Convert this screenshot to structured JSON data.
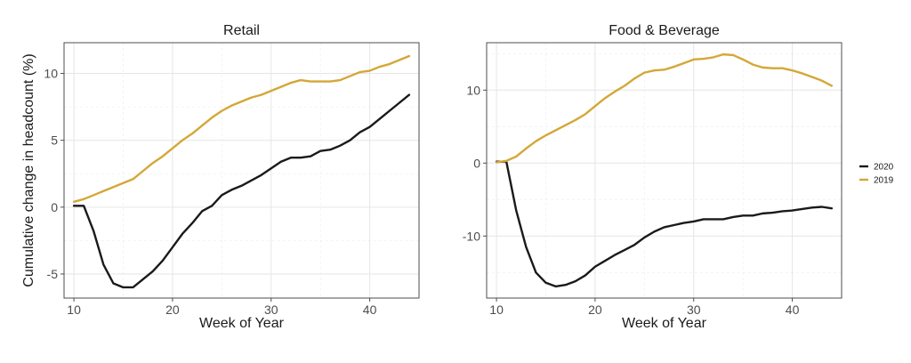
{
  "chart_data": [
    {
      "type": "line",
      "title": "Retail",
      "xlabel": "Week of Year",
      "ylabel": "Cumulative change in headcount (%)",
      "xlim": [
        9,
        45
      ],
      "ylim": [
        -6.8,
        12.3
      ],
      "xticks": [
        10,
        20,
        30,
        40
      ],
      "yticks": [
        -5,
        0,
        5,
        10
      ],
      "ytick_labels": [
        "-5",
        "0",
        "5",
        "10"
      ],
      "grid": true,
      "series": [
        {
          "name": "2020",
          "color": "#1a1a1a",
          "x": [
            10,
            11,
            12,
            13,
            14,
            15,
            16,
            17,
            18,
            19,
            20,
            21,
            22,
            23,
            24,
            25,
            26,
            27,
            28,
            29,
            30,
            31,
            32,
            33,
            34,
            35,
            36,
            37,
            38,
            39,
            40,
            41,
            42,
            43,
            44
          ],
          "y": [
            0.1,
            0.1,
            -1.8,
            -4.3,
            -5.7,
            -6.0,
            -6.0,
            -5.4,
            -4.8,
            -4.0,
            -3.0,
            -2.0,
            -1.2,
            -0.3,
            0.1,
            0.9,
            1.3,
            1.6,
            2.0,
            2.4,
            2.9,
            3.4,
            3.7,
            3.7,
            3.8,
            4.2,
            4.3,
            4.6,
            5.0,
            5.6,
            6.0,
            6.6,
            7.2,
            7.8,
            8.4
          ]
        },
        {
          "name": "2019",
          "color": "#d4a737",
          "x": [
            10,
            11,
            12,
            13,
            14,
            15,
            16,
            17,
            18,
            19,
            20,
            21,
            22,
            23,
            24,
            25,
            26,
            27,
            28,
            29,
            30,
            31,
            32,
            33,
            34,
            35,
            36,
            37,
            38,
            39,
            40,
            41,
            42,
            43,
            44
          ],
          "y": [
            0.4,
            0.6,
            0.9,
            1.2,
            1.5,
            1.8,
            2.1,
            2.7,
            3.3,
            3.8,
            4.4,
            5.0,
            5.5,
            6.1,
            6.7,
            7.2,
            7.6,
            7.9,
            8.2,
            8.4,
            8.7,
            9.0,
            9.3,
            9.5,
            9.4,
            9.4,
            9.4,
            9.5,
            9.8,
            10.1,
            10.2,
            10.5,
            10.7,
            11.0,
            11.3
          ]
        }
      ]
    },
    {
      "type": "line",
      "title": "Food & Beverage",
      "xlabel": "Week of Year",
      "ylabel": "",
      "xlim": [
        9,
        45
      ],
      "ylim": [
        -18.5,
        16.5
      ],
      "xticks": [
        10,
        20,
        30,
        40
      ],
      "yticks": [
        -10,
        0,
        10
      ],
      "ytick_labels": [
        "-10",
        "0",
        "10"
      ],
      "grid": true,
      "series": [
        {
          "name": "2020",
          "color": "#1a1a1a",
          "x": [
            10,
            11,
            12,
            13,
            14,
            15,
            16,
            17,
            18,
            19,
            20,
            21,
            22,
            23,
            24,
            25,
            26,
            27,
            28,
            29,
            30,
            31,
            32,
            33,
            34,
            35,
            36,
            37,
            38,
            39,
            40,
            41,
            42,
            43,
            44
          ],
          "y": [
            0.2,
            0.2,
            -6.5,
            -11.5,
            -15.0,
            -16.4,
            -16.9,
            -16.7,
            -16.2,
            -15.4,
            -14.2,
            -13.4,
            -12.6,
            -11.9,
            -11.2,
            -10.2,
            -9.4,
            -8.8,
            -8.5,
            -8.2,
            -8.0,
            -7.7,
            -7.7,
            -7.7,
            -7.4,
            -7.2,
            -7.2,
            -6.9,
            -6.8,
            -6.6,
            -6.5,
            -6.3,
            -6.1,
            -6.0,
            -6.2
          ]
        },
        {
          "name": "2019",
          "color": "#d4a737",
          "x": [
            10,
            11,
            12,
            13,
            14,
            15,
            16,
            17,
            18,
            19,
            20,
            21,
            22,
            23,
            24,
            25,
            26,
            27,
            28,
            29,
            30,
            31,
            32,
            33,
            34,
            35,
            36,
            37,
            38,
            39,
            40,
            41,
            42,
            43,
            44
          ],
          "y": [
            0.1,
            0.3,
            0.9,
            2.0,
            3.0,
            3.8,
            4.5,
            5.2,
            5.9,
            6.7,
            7.8,
            8.9,
            9.8,
            10.6,
            11.6,
            12.4,
            12.7,
            12.8,
            13.2,
            13.7,
            14.2,
            14.3,
            14.5,
            14.9,
            14.8,
            14.2,
            13.5,
            13.1,
            13.0,
            13.0,
            12.7,
            12.3,
            11.8,
            11.3,
            10.6
          ]
        }
      ]
    }
  ],
  "legend": {
    "items": [
      {
        "label": "2020",
        "color": "#1a1a1a"
      },
      {
        "label": "2019",
        "color": "#d4a737"
      }
    ],
    "placement": "right"
  }
}
